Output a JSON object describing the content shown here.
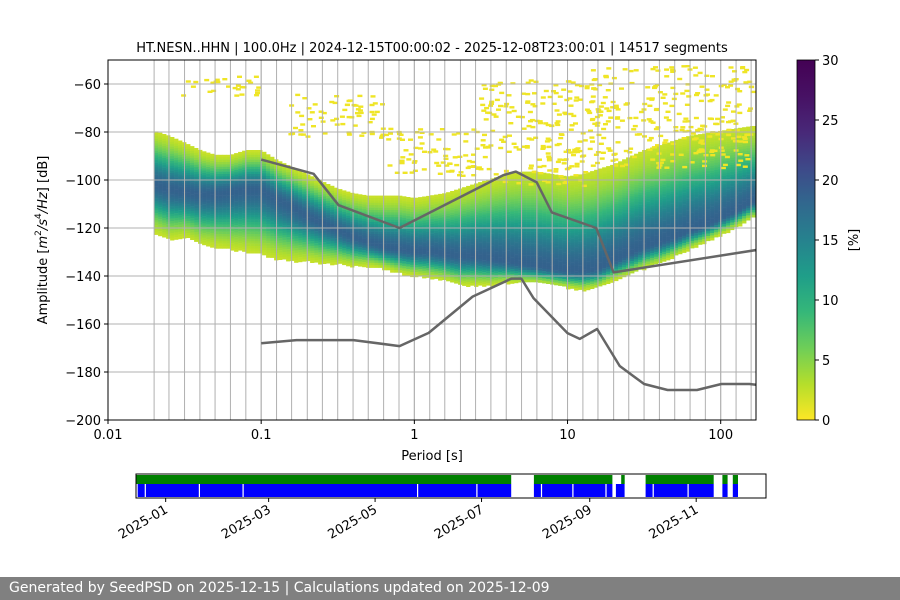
{
  "chart_data": [
    {
      "type": "heatmap",
      "title": "HT.NESN..HHN | 100.0Hz | 2024-12-15T00:00:02 - 2025-12-08T23:00:01 | 14517 segments",
      "xlabel": "Period [s]",
      "ylabel_parts": [
        "Amplitude [",
        "m",
        "2",
        "/",
        "s",
        "4",
        "/",
        "Hz",
        "] [dB]"
      ],
      "x_scale": "log",
      "xlim": [
        0.01,
        170
      ],
      "ylim": [
        -200,
        -50
      ],
      "x_ticks": [
        0.01,
        0.1,
        1,
        10,
        100
      ],
      "x_tick_labels": [
        "0.01",
        "0.1",
        "1",
        "10",
        "100"
      ],
      "y_ticks": [
        -200,
        -180,
        -160,
        -140,
        -120,
        -100,
        -80,
        -60
      ],
      "y_tick_labels": [
        "−200",
        "−180",
        "−160",
        "−140",
        "−120",
        "−100",
        "−80",
        "−60"
      ],
      "grid": true,
      "period_grid_lines": [
        0.02,
        0.025,
        0.0316,
        0.0398,
        0.05,
        0.063,
        0.0794,
        0.1,
        0.126,
        0.158,
        0.2,
        0.251,
        0.316,
        0.398,
        0.5,
        0.63,
        0.794,
        1,
        1.26,
        1.58,
        2,
        2.51,
        3.16,
        3.98,
        5.01,
        6.31,
        7.94,
        10,
        12.6,
        15.8,
        20,
        25.1,
        31.6,
        39.8,
        50.1,
        63.1,
        79.4,
        100,
        126,
        158
      ],
      "colorbar": {
        "label": "[%]",
        "range": [
          0,
          30
        ],
        "ticks": [
          0,
          5,
          10,
          15,
          20,
          25,
          30
        ],
        "tick_labels": [
          "0",
          "5",
          "10",
          "15",
          "20",
          "25",
          "30"
        ],
        "colormap": "viridis_r"
      },
      "distribution": {
        "period": [
          0.02,
          0.025,
          0.032,
          0.04,
          0.05,
          0.063,
          0.08,
          0.1,
          0.126,
          0.158,
          0.2,
          0.25,
          0.316,
          0.4,
          0.5,
          0.63,
          0.8,
          1,
          1.26,
          1.58,
          2,
          2.5,
          3.16,
          4,
          5,
          6.3,
          8,
          10,
          12.6,
          15.8,
          20,
          25,
          31.6,
          40,
          50,
          63,
          80,
          100,
          126,
          160
        ],
        "mode_db": [
          -102,
          -104,
          -105,
          -106,
          -106,
          -105,
          -104,
          -104,
          -108,
          -111,
          -115,
          -118,
          -121,
          -124,
          -126,
          -128,
          -129,
          -130,
          -130,
          -131,
          -132,
          -132,
          -133,
          -134,
          -135,
          -136,
          -137,
          -138,
          -138,
          -137,
          -134,
          -131,
          -128,
          -126,
          -124,
          -121,
          -119,
          -116,
          -113,
          -109
        ],
        "upper_db": [
          -80,
          -82,
          -85,
          -88,
          -90,
          -90,
          -88,
          -88,
          -92,
          -95,
          -98,
          -101,
          -104,
          -106,
          -107,
          -107,
          -107,
          -108,
          -107,
          -106,
          -104,
          -102,
          -100,
          -98,
          -97,
          -97,
          -98,
          -99,
          -98,
          -96,
          -94,
          -91,
          -88,
          -86,
          -84,
          -82,
          -81,
          -80,
          -79,
          -78
        ],
        "lower_db": [
          -122,
          -125,
          -124,
          -127,
          -128,
          -129,
          -130,
          -131,
          -133,
          -134,
          -134,
          -135,
          -135,
          -136,
          -136,
          -137,
          -139,
          -140,
          -141,
          -142,
          -144,
          -144,
          -144,
          -143,
          -143,
          -143,
          -144,
          -145,
          -146,
          -145,
          -142,
          -140,
          -137,
          -135,
          -132,
          -129,
          -126,
          -123,
          -120,
          -116
        ]
      },
      "sparse_clusters": [
        {
          "period_range": [
            0.03,
            0.1
          ],
          "db_range": [
            -65,
            -56
          ]
        },
        {
          "period_range": [
            0.15,
            0.6
          ],
          "db_range": [
            -82,
            -64
          ]
        },
        {
          "period_range": [
            0.6,
            2.5
          ],
          "db_range": [
            -98,
            -78
          ]
        },
        {
          "period_range": [
            2.5,
            14
          ],
          "db_range": [
            -102,
            -58
          ]
        },
        {
          "period_range": [
            14,
            160
          ],
          "db_range": [
            -95,
            -52
          ]
        }
      ],
      "series": [
        {
          "style": "noise-model-high",
          "x": [
            0.1,
            0.22,
            0.32,
            0.8,
            3.8,
            4.6,
            6.3,
            7.9,
            15.4,
            20,
            354.8
          ],
          "y": [
            -91.5,
            -97.4,
            -110.5,
            -120,
            -98,
            -96.5,
            -101,
            -113.5,
            -120,
            -138.5,
            -126
          ]
        },
        {
          "style": "noise-model-low",
          "x": [
            0.1,
            0.17,
            0.4,
            0.8,
            1.24,
            2.4,
            4.3,
            5,
            6,
            10,
            12,
            15.6,
            21.9,
            31.6,
            45,
            70,
            101,
            154,
            328.1
          ],
          "y": [
            -168,
            -166.7,
            -166.7,
            -169.2,
            -163.7,
            -148.6,
            -141.1,
            -141.1,
            -149.2,
            -163.8,
            -166.2,
            -162.1,
            -177.5,
            -185,
            -187.5,
            -187.5,
            -185,
            -185,
            -187.5
          ]
        }
      ],
      "series_color": "#666666"
    },
    {
      "type": "timeline",
      "x_range": [
        "2024-12-15",
        "2025-12-11"
      ],
      "x_ticks": [
        "2025-01-01",
        "2025-03-01",
        "2025-05-01",
        "2025-07-01",
        "2025-09-01",
        "2025-11-01"
      ],
      "x_tick_labels": [
        "2025-01",
        "2025-03",
        "2025-05",
        "2025-07",
        "2025-09",
        "2025-11"
      ],
      "rows": [
        {
          "color": "#008000",
          "intervals": [
            [
              "2024-12-15",
              "2025-07-18"
            ],
            [
              "2025-07-31",
              "2025-09-14"
            ],
            [
              "2025-09-19",
              "2025-09-21"
            ],
            [
              "2025-10-03",
              "2025-11-11"
            ],
            [
              "2025-11-16",
              "2025-11-19"
            ],
            [
              "2025-11-22",
              "2025-11-25"
            ]
          ]
        },
        {
          "color": "#0000ff",
          "intervals": [
            [
              "2024-12-16",
              "2025-07-18"
            ],
            [
              "2025-07-31",
              "2025-09-14"
            ],
            [
              "2025-09-16",
              "2025-09-21"
            ],
            [
              "2025-10-03",
              "2025-11-11"
            ],
            [
              "2025-11-16",
              "2025-11-19"
            ],
            [
              "2025-11-22",
              "2025-11-25"
            ]
          ],
          "gaps": [
            "2024-12-20",
            "2025-01-20",
            "2025-02-14",
            "2025-05-25",
            "2025-06-28",
            "2025-08-04",
            "2025-08-22",
            "2025-09-10",
            "2025-10-07",
            "2025-10-27"
          ]
        }
      ]
    }
  ],
  "footer": {
    "text": "Generated by SeedPSD on 2025-12-15 | Calculations updated on 2025-12-09"
  }
}
